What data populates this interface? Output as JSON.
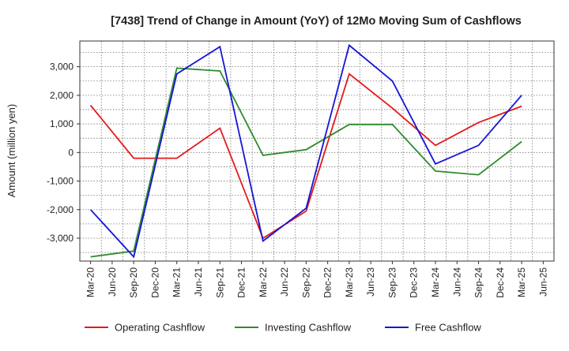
{
  "chart_data": {
    "type": "line",
    "title": "[7438]  Trend of Change in Amount (YoY) of 12Mo Moving Sum of Cashflows",
    "xlabel": "",
    "ylabel": "Amount (million yen)",
    "ylim": [
      -3800,
      3900
    ],
    "yticks": [
      -3000,
      -2000,
      -1000,
      0,
      1000,
      2000,
      3000
    ],
    "ytick_labels": [
      "-3,000",
      "-2,000",
      "-1,000",
      "0",
      "1,000",
      "2,000",
      "3,000"
    ],
    "categories": [
      "Mar-20",
      "Jun-20",
      "Sep-20",
      "Dec-20",
      "Mar-21",
      "Jun-21",
      "Sep-21",
      "Dec-21",
      "Mar-22",
      "Jun-22",
      "Sep-22",
      "Dec-22",
      "Mar-23",
      "Jun-23",
      "Sep-23",
      "Dec-23",
      "Mar-24",
      "Jun-24",
      "Sep-24",
      "Dec-24",
      "Mar-25",
      "Jun-25"
    ],
    "grid": true,
    "legend_position": "bottom",
    "series": [
      {
        "name": "Operating Cashflow",
        "color": "#e41a1c",
        "values": [
          1650,
          null,
          -200,
          null,
          -200,
          null,
          850,
          null,
          -3000,
          null,
          -2050,
          null,
          2750,
          null,
          1550,
          null,
          250,
          null,
          1050,
          null,
          1620,
          null
        ]
      },
      {
        "name": "Investing Cashflow",
        "color": "#2e8b2e",
        "values": [
          -3650,
          null,
          -3450,
          null,
          2950,
          null,
          2850,
          null,
          -100,
          null,
          100,
          null,
          980,
          null,
          980,
          null,
          -650,
          null,
          -780,
          null,
          380,
          null
        ]
      },
      {
        "name": "Free Cashflow",
        "color": "#1515d6",
        "values": [
          -2000,
          null,
          -3650,
          null,
          2750,
          null,
          3700,
          null,
          -3100,
          null,
          -1950,
          null,
          3750,
          null,
          2500,
          null,
          -400,
          null,
          250,
          null,
          2000,
          null
        ]
      }
    ]
  }
}
